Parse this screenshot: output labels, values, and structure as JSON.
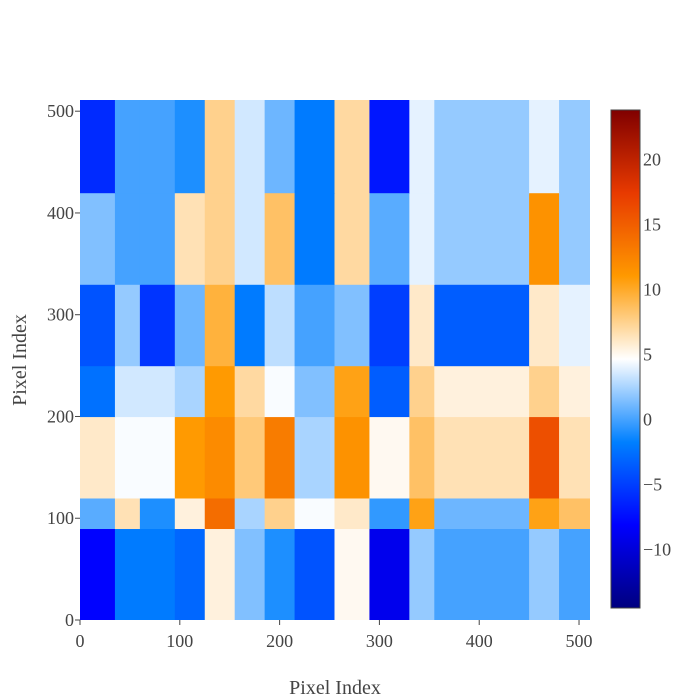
{
  "chart_data": {
    "type": "heatmap",
    "title": "",
    "xlabel": "Pixel Index",
    "ylabel": "Pixel Index",
    "xlim": [
      0,
      511
    ],
    "ylim": [
      0,
      511
    ],
    "x_ticks": [
      0,
      100,
      200,
      300,
      400,
      500
    ],
    "y_ticks": [
      0,
      100,
      200,
      300,
      400,
      500
    ],
    "colorbar": {
      "range": [
        -14.5,
        23.8
      ],
      "ticks": [
        -10,
        -5,
        0,
        5,
        10,
        15,
        20
      ],
      "tick_labels": [
        "−10",
        "−5",
        "0",
        "5",
        "10",
        "15",
        "20"
      ],
      "colorscale": [
        "#00007f",
        "#0000ff",
        "#0080ff",
        "#ffffff",
        "#ff9900",
        "#e83a00",
        "#800000"
      ]
    },
    "column_bands": [
      {
        "x": [
          0,
          35
        ],
        "value": -6
      },
      {
        "x": [
          35,
          60
        ],
        "value": 1
      },
      {
        "x": [
          60,
          95
        ],
        "value": -4
      },
      {
        "x": [
          95,
          125
        ],
        "value": 4
      },
      {
        "x": [
          125,
          155
        ],
        "value": 16
      },
      {
        "x": [
          155,
          185
        ],
        "value": 3
      },
      {
        "x": [
          185,
          215
        ],
        "value": 8
      },
      {
        "x": [
          215,
          255
        ],
        "value": -3
      },
      {
        "x": [
          255,
          290
        ],
        "value": 10
      },
      {
        "x": [
          290,
          330
        ],
        "value": -8
      },
      {
        "x": [
          330,
          355
        ],
        "value": 9
      },
      {
        "x": [
          355,
          450
        ],
        "value": 0
      },
      {
        "x": [
          450,
          480
        ],
        "value": 14
      },
      {
        "x": [
          480,
          511
        ],
        "value": 5
      }
    ],
    "row_bands": [
      {
        "y": [
          0,
          90
        ],
        "value": -5
      },
      {
        "y": [
          90,
          120
        ],
        "value": 7
      },
      {
        "y": [
          120,
          200
        ],
        "value": 13
      },
      {
        "y": [
          200,
          250
        ],
        "value": 6
      },
      {
        "y": [
          250,
          330
        ],
        "value": -2
      },
      {
        "y": [
          330,
          420
        ],
        "value": 4
      },
      {
        "y": [
          420,
          511
        ],
        "value": -1
      }
    ]
  }
}
